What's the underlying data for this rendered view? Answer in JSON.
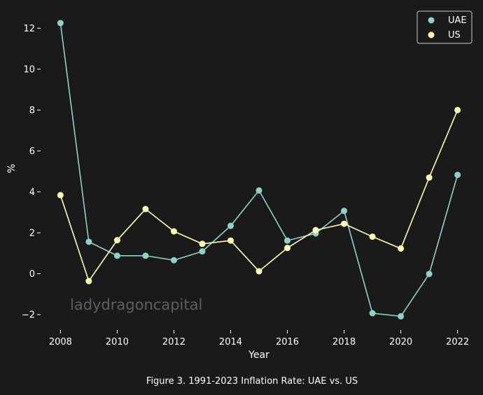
{
  "chart_data": {
    "type": "line",
    "title": "",
    "caption": "Figure 3. 1991-2023 Inflation Rate: UAE vs. US",
    "xlabel": "Year",
    "ylabel": "%",
    "watermark": "ladydragoncapital",
    "x": [
      2008,
      2009,
      2010,
      2011,
      2012,
      2013,
      2014,
      2015,
      2016,
      2017,
      2018,
      2019,
      2020,
      2021,
      2022
    ],
    "xlim": [
      2007.3,
      2022.7
    ],
    "ylim": [
      -2.75,
      12.9
    ],
    "xticks": [
      2008,
      2010,
      2012,
      2014,
      2016,
      2018,
      2020,
      2022
    ],
    "yticks": [
      -2,
      0,
      2,
      4,
      6,
      8,
      10,
      12
    ],
    "ytick_labels": [
      "−2",
      "0",
      "2",
      "4",
      "6",
      "8",
      "10",
      "12"
    ],
    "grid": false,
    "legend_position": "top-right",
    "series": [
      {
        "name": "UAE",
        "color": "#8dd3c7",
        "values": [
          12.25,
          1.56,
          0.88,
          0.88,
          0.66,
          1.09,
          2.34,
          4.07,
          1.62,
          1.97,
          3.07,
          -1.93,
          -2.08,
          -0.01,
          4.83
        ]
      },
      {
        "name": "US",
        "color": "#ffffb3",
        "values": [
          3.84,
          -0.36,
          1.64,
          3.16,
          2.07,
          1.46,
          1.62,
          0.12,
          1.26,
          2.13,
          2.44,
          1.81,
          1.23,
          4.7,
          8.0
        ]
      }
    ]
  }
}
